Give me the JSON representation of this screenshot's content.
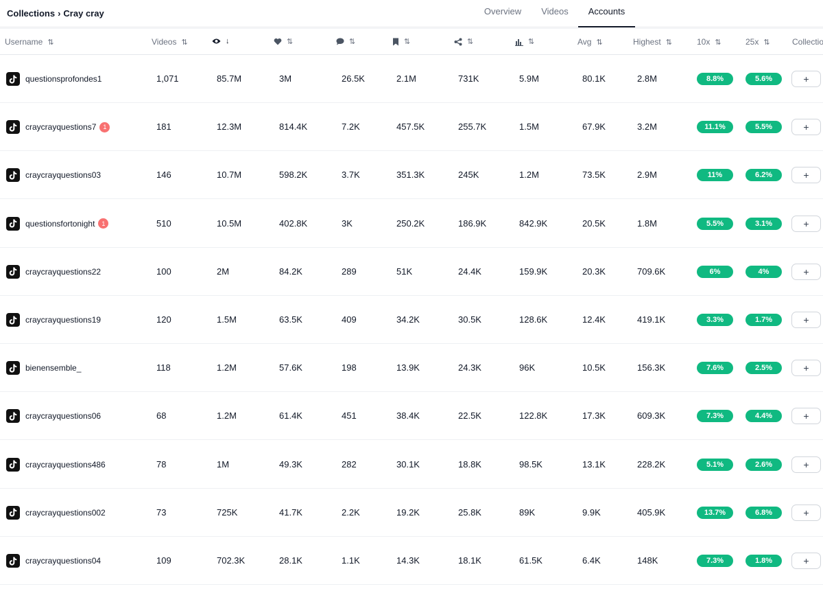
{
  "breadcrumb": {
    "root": "Collections",
    "separator": "›",
    "current": "Cray cray"
  },
  "tabs": [
    {
      "label": "Overview",
      "active": false
    },
    {
      "label": "Videos",
      "active": false
    },
    {
      "label": "Accounts",
      "active": true
    }
  ],
  "columns": {
    "username": "Username",
    "videos": "Videos",
    "views_icon": "eye-icon",
    "likes_icon": "heart-icon",
    "comments_icon": "comment-icon",
    "saves_icon": "bookmark-icon",
    "shares_icon": "share-icon",
    "engagement_icon": "bar-chart-icon",
    "avg": "Avg",
    "highest": "Highest",
    "x10": "10x",
    "x25": "25x",
    "collection": "Collection",
    "sort_icon": "⇅",
    "sort_down_icon": "↓"
  },
  "add_label": "+",
  "colors": {
    "accent": "#10b981",
    "badge": "#f87171"
  },
  "rows": [
    {
      "username": "questionsprofondes1",
      "badge": "",
      "videos": "1,071",
      "views": "85.7M",
      "likes": "3M",
      "comments": "26.5K",
      "saves": "2.1M",
      "shares": "731K",
      "engagement": "5.9M",
      "avg": "80.1K",
      "highest": "2.8M",
      "x10": "8.8%",
      "x25": "5.6%"
    },
    {
      "username": "craycrayquestions7",
      "badge": "1",
      "videos": "181",
      "views": "12.3M",
      "likes": "814.4K",
      "comments": "7.2K",
      "saves": "457.5K",
      "shares": "255.7K",
      "engagement": "1.5M",
      "avg": "67.9K",
      "highest": "3.2M",
      "x10": "11.1%",
      "x25": "5.5%"
    },
    {
      "username": "craycrayquestions03",
      "badge": "",
      "videos": "146",
      "views": "10.7M",
      "likes": "598.2K",
      "comments": "3.7K",
      "saves": "351.3K",
      "shares": "245K",
      "engagement": "1.2M",
      "avg": "73.5K",
      "highest": "2.9M",
      "x10": "11%",
      "x25": "6.2%"
    },
    {
      "username": "questionsfortonight",
      "badge": "1",
      "videos": "510",
      "views": "10.5M",
      "likes": "402.8K",
      "comments": "3K",
      "saves": "250.2K",
      "shares": "186.9K",
      "engagement": "842.9K",
      "avg": "20.5K",
      "highest": "1.8M",
      "x10": "5.5%",
      "x25": "3.1%"
    },
    {
      "username": "craycrayquestions22",
      "badge": "",
      "videos": "100",
      "views": "2M",
      "likes": "84.2K",
      "comments": "289",
      "saves": "51K",
      "shares": "24.4K",
      "engagement": "159.9K",
      "avg": "20.3K",
      "highest": "709.6K",
      "x10": "6%",
      "x25": "4%"
    },
    {
      "username": "craycrayquestions19",
      "badge": "",
      "videos": "120",
      "views": "1.5M",
      "likes": "63.5K",
      "comments": "409",
      "saves": "34.2K",
      "shares": "30.5K",
      "engagement": "128.6K",
      "avg": "12.4K",
      "highest": "419.1K",
      "x10": "3.3%",
      "x25": "1.7%"
    },
    {
      "username": "bienensemble_",
      "badge": "",
      "videos": "118",
      "views": "1.2M",
      "likes": "57.6K",
      "comments": "198",
      "saves": "13.9K",
      "shares": "24.3K",
      "engagement": "96K",
      "avg": "10.5K",
      "highest": "156.3K",
      "x10": "7.6%",
      "x25": "2.5%"
    },
    {
      "username": "craycrayquestions06",
      "badge": "",
      "videos": "68",
      "views": "1.2M",
      "likes": "61.4K",
      "comments": "451",
      "saves": "38.4K",
      "shares": "22.5K",
      "engagement": "122.8K",
      "avg": "17.3K",
      "highest": "609.3K",
      "x10": "7.3%",
      "x25": "4.4%"
    },
    {
      "username": "craycrayquestions486",
      "badge": "",
      "videos": "78",
      "views": "1M",
      "likes": "49.3K",
      "comments": "282",
      "saves": "30.1K",
      "shares": "18.8K",
      "engagement": "98.5K",
      "avg": "13.1K",
      "highest": "228.2K",
      "x10": "5.1%",
      "x25": "2.6%"
    },
    {
      "username": "craycrayquestions002",
      "badge": "",
      "videos": "73",
      "views": "725K",
      "likes": "41.7K",
      "comments": "2.2K",
      "saves": "19.2K",
      "shares": "25.8K",
      "engagement": "89K",
      "avg": "9.9K",
      "highest": "405.9K",
      "x10": "13.7%",
      "x25": "6.8%"
    },
    {
      "username": "craycrayquestions04",
      "badge": "",
      "videos": "109",
      "views": "702.3K",
      "likes": "28.1K",
      "comments": "1.1K",
      "saves": "14.3K",
      "shares": "18.1K",
      "engagement": "61.5K",
      "avg": "6.4K",
      "highest": "148K",
      "x10": "7.3%",
      "x25": "1.8%"
    }
  ]
}
